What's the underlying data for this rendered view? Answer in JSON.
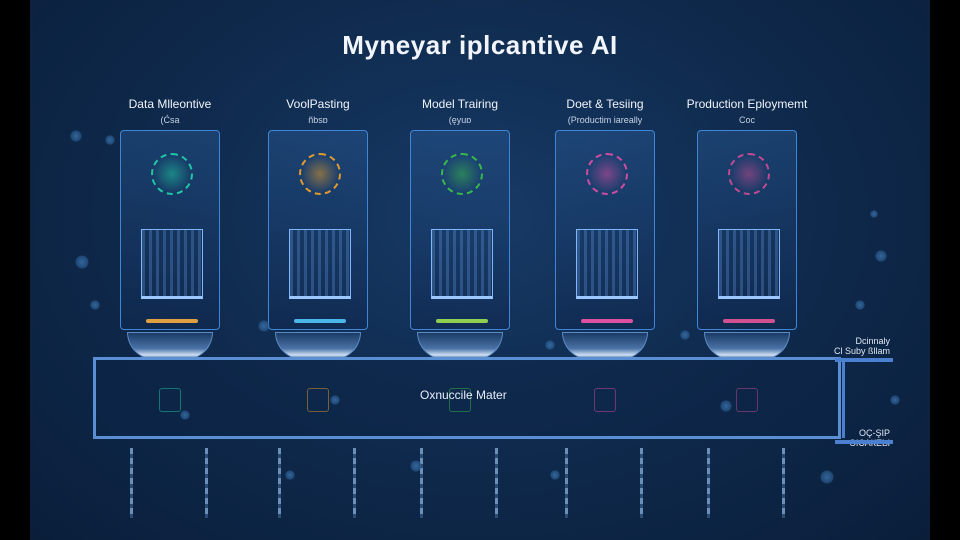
{
  "title": "Myneyar iplcantive AI",
  "stages": [
    {
      "label": "Data Mlleontive",
      "sub": "(Ćsa",
      "orb": "#1fc7a2",
      "bar": "#e0a040"
    },
    {
      "label": "VoolPasting",
      "sub": "ñbsɒ",
      "orb": "#e39a2c",
      "bar": "#4bb6e8"
    },
    {
      "label": "Model Trairing",
      "sub": "(ęyuɒ",
      "orb": "#39b84a",
      "bar": "#8fd050"
    },
    {
      "label": "Doet & Tesiing",
      "sub": "(Productim iareally",
      "orb": "#d14ca0",
      "bar": "#e050a0"
    },
    {
      "label": "Production Eploymemt",
      "sub": "Coc",
      "orb": "#c04a90",
      "bar": "#d05090"
    }
  ],
  "pipe_label": "Oxnuccile Mater",
  "side": {
    "top_label": "Dcinnaly",
    "top_sub": "Cl Suby ßllam",
    "bottom_label": "OÇ-ŞIP ЭЮАКЕЫ"
  }
}
